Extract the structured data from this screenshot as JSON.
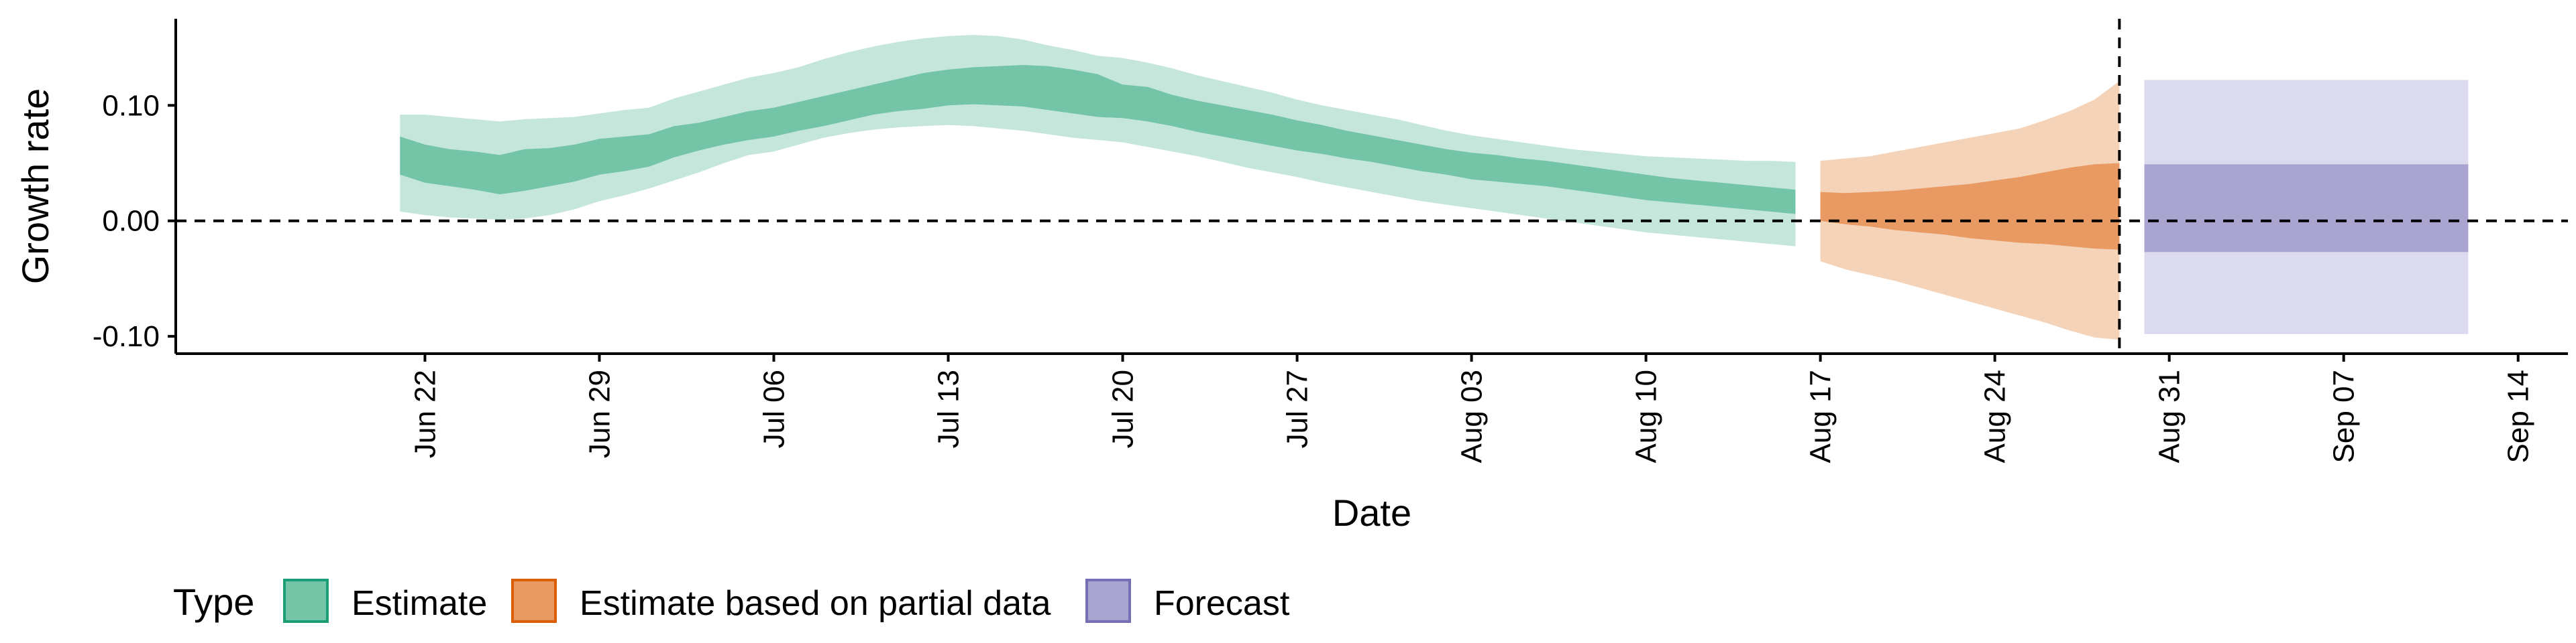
{
  "chart_data": {
    "type": "area",
    "xlabel": "Date",
    "ylabel": "Growth rate",
    "ylim": [
      -0.115,
      0.175
    ],
    "y_ticks": [
      {
        "value": 0.1,
        "label": "0.10"
      },
      {
        "value": 0.0,
        "label": "0.00"
      },
      {
        "value": -0.1,
        "label": "-0.10"
      }
    ],
    "x_ticks": [
      {
        "date": "2020-06-22",
        "label": "Jun 22"
      },
      {
        "date": "2020-06-29",
        "label": "Jun 29"
      },
      {
        "date": "2020-07-06",
        "label": "Jul 06"
      },
      {
        "date": "2020-07-13",
        "label": "Jul 13"
      },
      {
        "date": "2020-07-20",
        "label": "Jul 20"
      },
      {
        "date": "2020-07-27",
        "label": "Jul 27"
      },
      {
        "date": "2020-08-03",
        "label": "Aug 03"
      },
      {
        "date": "2020-08-10",
        "label": "Aug 10"
      },
      {
        "date": "2020-08-17",
        "label": "Aug 17"
      },
      {
        "date": "2020-08-24",
        "label": "Aug 24"
      },
      {
        "date": "2020-08-31",
        "label": "Aug 31"
      },
      {
        "date": "2020-09-07",
        "label": "Sep 07"
      },
      {
        "date": "2020-09-14",
        "label": "Sep 14"
      }
    ],
    "xlim": [
      "2020-06-12",
      "2020-09-16"
    ],
    "reference_lines": {
      "horizontal_y": 0.0,
      "vertical_date": "2020-08-29"
    },
    "legend": {
      "title": "Type",
      "position": "bottom-left",
      "entries": [
        {
          "label": "Estimate",
          "fill": "#74c4a8",
          "stroke": "#1b9e77"
        },
        {
          "label": "Estimate based on partial data",
          "fill": "#e89a62",
          "stroke": "#d95f02"
        },
        {
          "label": "Forecast",
          "fill": "#a9a4d0",
          "stroke": "#7570b3"
        }
      ]
    },
    "series": [
      {
        "name": "Estimate",
        "outer_fill": "#c5e7db",
        "inner_fill": "#74c4a8",
        "dates": [
          "2020-06-21",
          "2020-06-22",
          "2020-06-23",
          "2020-06-24",
          "2020-06-25",
          "2020-06-26",
          "2020-06-27",
          "2020-06-28",
          "2020-06-29",
          "2020-06-30",
          "2020-07-01",
          "2020-07-02",
          "2020-07-03",
          "2020-07-04",
          "2020-07-05",
          "2020-07-06",
          "2020-07-07",
          "2020-07-08",
          "2020-07-09",
          "2020-07-10",
          "2020-07-11",
          "2020-07-12",
          "2020-07-13",
          "2020-07-14",
          "2020-07-15",
          "2020-07-16",
          "2020-07-17",
          "2020-07-18",
          "2020-07-19",
          "2020-07-20",
          "2020-07-21",
          "2020-07-22",
          "2020-07-23",
          "2020-07-24",
          "2020-07-25",
          "2020-07-26",
          "2020-07-27",
          "2020-07-28",
          "2020-07-29",
          "2020-07-30",
          "2020-07-31",
          "2020-08-01",
          "2020-08-02",
          "2020-08-03",
          "2020-08-04",
          "2020-08-05",
          "2020-08-06",
          "2020-08-07",
          "2020-08-08",
          "2020-08-09",
          "2020-08-10",
          "2020-08-11",
          "2020-08-12",
          "2020-08-13",
          "2020-08-14",
          "2020-08-15",
          "2020-08-16"
        ],
        "lower_90": [
          0.008,
          0.005,
          0.003,
          0.002,
          0.001,
          0.002,
          0.005,
          0.01,
          0.017,
          0.022,
          0.028,
          0.035,
          0.042,
          0.05,
          0.057,
          0.06,
          0.066,
          0.072,
          0.076,
          0.079,
          0.081,
          0.082,
          0.083,
          0.082,
          0.08,
          0.078,
          0.075,
          0.072,
          0.07,
          0.068,
          0.064,
          0.06,
          0.056,
          0.051,
          0.046,
          0.042,
          0.038,
          0.033,
          0.029,
          0.025,
          0.021,
          0.017,
          0.014,
          0.011,
          0.008,
          0.005,
          0.002,
          -0.001,
          -0.004,
          -0.007,
          -0.01,
          -0.012,
          -0.014,
          -0.016,
          -0.018,
          -0.02,
          -0.022
        ],
        "lower_50": [
          0.04,
          0.033,
          0.03,
          0.027,
          0.023,
          0.026,
          0.03,
          0.034,
          0.04,
          0.043,
          0.047,
          0.055,
          0.061,
          0.066,
          0.07,
          0.073,
          0.078,
          0.082,
          0.087,
          0.092,
          0.095,
          0.097,
          0.1,
          0.101,
          0.1,
          0.099,
          0.096,
          0.093,
          0.09,
          0.089,
          0.086,
          0.082,
          0.077,
          0.073,
          0.069,
          0.065,
          0.061,
          0.058,
          0.054,
          0.051,
          0.047,
          0.043,
          0.04,
          0.036,
          0.034,
          0.032,
          0.03,
          0.027,
          0.024,
          0.021,
          0.018,
          0.016,
          0.014,
          0.012,
          0.01,
          0.008,
          0.006
        ],
        "upper_50": [
          0.073,
          0.066,
          0.062,
          0.06,
          0.057,
          0.062,
          0.063,
          0.066,
          0.071,
          0.073,
          0.075,
          0.082,
          0.085,
          0.09,
          0.095,
          0.098,
          0.103,
          0.108,
          0.113,
          0.118,
          0.123,
          0.128,
          0.131,
          0.133,
          0.134,
          0.135,
          0.134,
          0.131,
          0.127,
          0.118,
          0.116,
          0.109,
          0.104,
          0.1,
          0.096,
          0.092,
          0.087,
          0.083,
          0.078,
          0.074,
          0.07,
          0.066,
          0.062,
          0.059,
          0.057,
          0.054,
          0.052,
          0.049,
          0.046,
          0.043,
          0.04,
          0.037,
          0.035,
          0.033,
          0.031,
          0.029,
          0.027
        ],
        "upper_90": [
          0.092,
          0.092,
          0.09,
          0.088,
          0.086,
          0.088,
          0.089,
          0.09,
          0.093,
          0.096,
          0.098,
          0.106,
          0.112,
          0.118,
          0.124,
          0.128,
          0.133,
          0.14,
          0.146,
          0.151,
          0.155,
          0.158,
          0.16,
          0.161,
          0.16,
          0.157,
          0.152,
          0.148,
          0.143,
          0.141,
          0.137,
          0.132,
          0.126,
          0.121,
          0.116,
          0.111,
          0.105,
          0.1,
          0.096,
          0.092,
          0.088,
          0.083,
          0.078,
          0.074,
          0.071,
          0.068,
          0.065,
          0.062,
          0.06,
          0.058,
          0.056,
          0.055,
          0.054,
          0.053,
          0.052,
          0.052,
          0.051
        ]
      },
      {
        "name": "Estimate based on partial data",
        "outer_fill": "#f5d3b8",
        "inner_fill": "#e89a62",
        "dates": [
          "2020-08-17",
          "2020-08-18",
          "2020-08-19",
          "2020-08-20",
          "2020-08-21",
          "2020-08-22",
          "2020-08-23",
          "2020-08-24",
          "2020-08-25",
          "2020-08-26",
          "2020-08-27",
          "2020-08-28",
          "2020-08-29"
        ],
        "lower_90": [
          -0.035,
          -0.042,
          -0.047,
          -0.052,
          -0.058,
          -0.064,
          -0.07,
          -0.076,
          -0.082,
          -0.088,
          -0.095,
          -0.101,
          -0.103
        ],
        "lower_50": [
          0.0,
          -0.003,
          -0.005,
          -0.008,
          -0.01,
          -0.012,
          -0.015,
          -0.017,
          -0.019,
          -0.02,
          -0.022,
          -0.024,
          -0.025
        ],
        "upper_50": [
          0.025,
          0.024,
          0.025,
          0.026,
          0.028,
          0.03,
          0.032,
          0.035,
          0.038,
          0.042,
          0.046,
          0.049,
          0.05
        ],
        "upper_90": [
          0.052,
          0.054,
          0.056,
          0.06,
          0.064,
          0.068,
          0.072,
          0.076,
          0.08,
          0.087,
          0.095,
          0.105,
          0.121
        ]
      },
      {
        "name": "Forecast",
        "outer_fill": "#dcdaee",
        "inner_fill": "#a9a4d0",
        "dates": [
          "2020-08-30",
          "2020-09-12"
        ],
        "lower_90": [
          -0.098,
          -0.098
        ],
        "lower_50": [
          -0.027,
          -0.027
        ],
        "upper_50": [
          0.049,
          0.049
        ],
        "upper_90": [
          0.122,
          0.122
        ]
      }
    ]
  }
}
